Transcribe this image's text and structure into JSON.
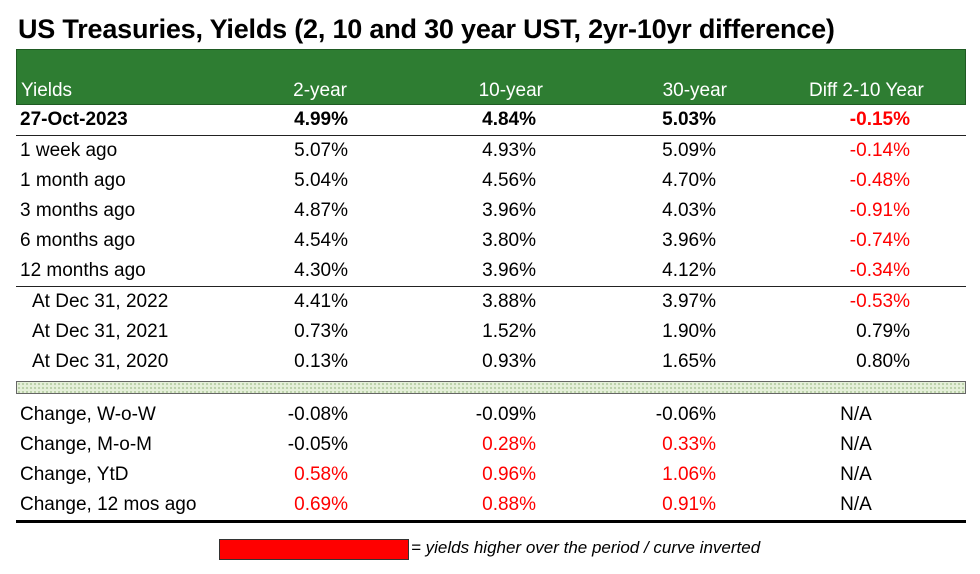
{
  "title": "US Treasuries, Yields (2, 10 and 30 year UST, 2yr-10yr difference)",
  "header": [
    "Yields",
    "2-year",
    "10-year",
    "30-year",
    "Diff 2-10 Year"
  ],
  "rows": [
    {
      "label": "27-Oct-2023",
      "y2": "4.99%",
      "y10": "4.84%",
      "y30": "5.03%",
      "diff": "-0.15%"
    },
    {
      "label": "1 week ago",
      "y2": "5.07%",
      "y10": "4.93%",
      "y30": "5.09%",
      "diff": "-0.14%"
    },
    {
      "label": "1 month ago",
      "y2": "5.04%",
      "y10": "4.56%",
      "y30": "4.70%",
      "diff": "-0.48%"
    },
    {
      "label": "3 months ago",
      "y2": "4.87%",
      "y10": "3.96%",
      "y30": "4.03%",
      "diff": "-0.91%"
    },
    {
      "label": "6 months ago",
      "y2": "4.54%",
      "y10": "3.80%",
      "y30": "3.96%",
      "diff": "-0.74%"
    },
    {
      "label": "12 months ago",
      "y2": "4.30%",
      "y10": "3.96%",
      "y30": "4.12%",
      "diff": "-0.34%"
    },
    {
      "label": "At Dec 31, 2022",
      "y2": "4.41%",
      "y10": "3.88%",
      "y30": "3.97%",
      "diff": "-0.53%"
    },
    {
      "label": "At Dec 31, 2021",
      "y2": "0.73%",
      "y10": "1.52%",
      "y30": "1.90%",
      "diff": "0.79%"
    },
    {
      "label": "At Dec 31, 2020",
      "y2": "0.13%",
      "y10": "0.93%",
      "y30": "1.65%",
      "diff": "0.80%"
    }
  ],
  "changes": [
    {
      "label": "Change, W-o-W",
      "y2": "-0.08%",
      "y10": "-0.09%",
      "y30": "-0.06%",
      "diff": "N/A"
    },
    {
      "label": "Change, M-o-M",
      "y2": "-0.05%",
      "y10": "0.28%",
      "y30": "0.33%",
      "diff": "N/A"
    },
    {
      "label": "Change, YtD",
      "y2": "0.58%",
      "y10": "0.96%",
      "y30": "1.06%",
      "diff": "N/A"
    },
    {
      "label": "Change, 12 mos ago",
      "y2": "0.69%",
      "y10": "0.88%",
      "y30": "0.91%",
      "diff": "N/A"
    }
  ],
  "legend": "= yields higher over the period / curve inverted",
  "colors": {
    "header_bg": "#2e7d32",
    "highlight": "#ff0000"
  }
}
